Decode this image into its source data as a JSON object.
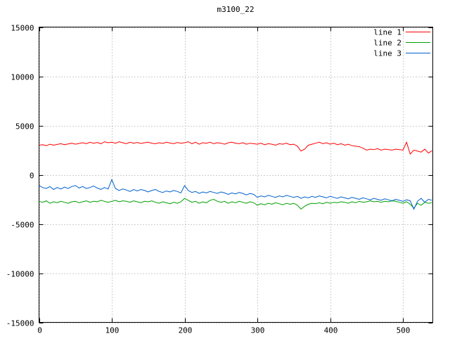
{
  "chart_data": {
    "type": "line",
    "title": "m3100_22",
    "xlabel": "",
    "ylabel": "",
    "xlim": [
      0,
      541
    ],
    "ylim": [
      -15000,
      15000
    ],
    "xticks": [
      0,
      100,
      200,
      300,
      400,
      500
    ],
    "yticks": [
      -15000,
      -10000,
      -5000,
      0,
      5000,
      10000,
      15000
    ],
    "grid": true,
    "grid_color": "#9e9e9e",
    "border_color": "#000000",
    "background": "#ffffff",
    "legend_position": "top-right-inside",
    "x": [
      0,
      5,
      10,
      15,
      20,
      25,
      30,
      35,
      40,
      45,
      50,
      55,
      60,
      65,
      70,
      75,
      80,
      85,
      90,
      95,
      100,
      105,
      110,
      115,
      120,
      125,
      130,
      135,
      140,
      145,
      150,
      155,
      160,
      165,
      170,
      175,
      180,
      185,
      190,
      195,
      200,
      205,
      210,
      215,
      220,
      225,
      230,
      235,
      240,
      245,
      250,
      255,
      260,
      265,
      270,
      275,
      280,
      285,
      290,
      295,
      300,
      305,
      310,
      315,
      320,
      325,
      330,
      335,
      340,
      345,
      350,
      355,
      360,
      365,
      370,
      375,
      380,
      385,
      390,
      395,
      400,
      405,
      410,
      415,
      420,
      425,
      430,
      435,
      440,
      445,
      450,
      455,
      460,
      465,
      470,
      475,
      480,
      485,
      490,
      495,
      500,
      505,
      510,
      515,
      520,
      525,
      530,
      535,
      540
    ],
    "series": [
      {
        "name": "line 1",
        "color": "#ff0000",
        "values": [
          3000,
          3050,
          2950,
          3100,
          3000,
          3080,
          3150,
          3050,
          3120,
          3200,
          3100,
          3180,
          3250,
          3150,
          3300,
          3200,
          3280,
          3150,
          3350,
          3250,
          3300,
          3200,
          3350,
          3250,
          3150,
          3300,
          3200,
          3280,
          3180,
          3250,
          3300,
          3200,
          3150,
          3250,
          3180,
          3300,
          3220,
          3150,
          3280,
          3200,
          3250,
          3350,
          3150,
          3300,
          3100,
          3250,
          3200,
          3300,
          3150,
          3250,
          3200,
          3100,
          3250,
          3300,
          3200,
          3150,
          3250,
          3100,
          3200,
          3150,
          3100,
          3200,
          3050,
          3150,
          3100,
          3000,
          3150,
          3100,
          3200,
          3050,
          3100,
          2900,
          2400,
          2600,
          3000,
          3100,
          3200,
          3300,
          3150,
          3250,
          3100,
          3200,
          3050,
          3150,
          3000,
          3100,
          2950,
          2900,
          2850,
          2700,
          2500,
          2600,
          2550,
          2650,
          2500,
          2600,
          2550,
          2500,
          2600,
          2550,
          2500,
          3300,
          2100,
          2500,
          2400,
          2300,
          2600,
          2200,
          2450
        ]
      },
      {
        "name": "line 2",
        "color": "#00a000",
        "values": [
          -2700,
          -2800,
          -2650,
          -2900,
          -2750,
          -2850,
          -2700,
          -2800,
          -2900,
          -2750,
          -2700,
          -2850,
          -2750,
          -2650,
          -2800,
          -2700,
          -2750,
          -2600,
          -2700,
          -2800,
          -2700,
          -2600,
          -2750,
          -2650,
          -2700,
          -2800,
          -2650,
          -2750,
          -2850,
          -2700,
          -2750,
          -2650,
          -2800,
          -2900,
          -2750,
          -2850,
          -2950,
          -2800,
          -2900,
          -2750,
          -2400,
          -2600,
          -2800,
          -2700,
          -2900,
          -2750,
          -2850,
          -2600,
          -2500,
          -2700,
          -2800,
          -2700,
          -2900,
          -2750,
          -2850,
          -2700,
          -2800,
          -2900,
          -2750,
          -2850,
          -3100,
          -2950,
          -3050,
          -2900,
          -3000,
          -2850,
          -2950,
          -3050,
          -2900,
          -3000,
          -2900,
          -3100,
          -3500,
          -3200,
          -3000,
          -2900,
          -2950,
          -2850,
          -2950,
          -2800,
          -2900,
          -2800,
          -2850,
          -2750,
          -2800,
          -2900,
          -2750,
          -2850,
          -2700,
          -2800,
          -2750,
          -2650,
          -2750,
          -2700,
          -2800,
          -2700,
          -2750,
          -2650,
          -2700,
          -2800,
          -2900,
          -2750,
          -3000,
          -3400,
          -2900,
          -3100,
          -2800,
          -2900,
          -2850
        ]
      },
      {
        "name": "line 3",
        "color": "#0060d0",
        "values": [
          -1100,
          -1300,
          -1400,
          -1200,
          -1500,
          -1300,
          -1450,
          -1250,
          -1400,
          -1200,
          -1100,
          -1350,
          -1200,
          -1400,
          -1300,
          -1150,
          -1350,
          -1500,
          -1300,
          -1450,
          -500,
          -1400,
          -1600,
          -1450,
          -1550,
          -1700,
          -1500,
          -1650,
          -1500,
          -1600,
          -1750,
          -1600,
          -1500,
          -1700,
          -1800,
          -1650,
          -1750,
          -1600,
          -1700,
          -1850,
          -1100,
          -1600,
          -1800,
          -1700,
          -1900,
          -1750,
          -1850,
          -1700,
          -1800,
          -1900,
          -1750,
          -1850,
          -2000,
          -1850,
          -1950,
          -1800,
          -1900,
          -2050,
          -1900,
          -2000,
          -2300,
          -2150,
          -2250,
          -2100,
          -2200,
          -2300,
          -2150,
          -2250,
          -2100,
          -2200,
          -2300,
          -2200,
          -2400,
          -2250,
          -2350,
          -2200,
          -2300,
          -2150,
          -2250,
          -2350,
          -2200,
          -2300,
          -2400,
          -2250,
          -2350,
          -2450,
          -2300,
          -2400,
          -2500,
          -2350,
          -2450,
          -2550,
          -2400,
          -2500,
          -2600,
          -2450,
          -2550,
          -2650,
          -2500,
          -2600,
          -2700,
          -2550,
          -2650,
          -3500,
          -2700,
          -2400,
          -2800,
          -2500,
          -2600
        ]
      }
    ]
  }
}
